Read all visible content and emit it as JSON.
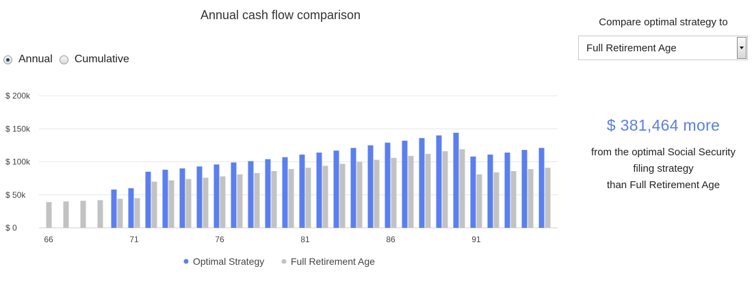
{
  "title": "Annual cash flow comparison",
  "view_mode": {
    "options": [
      "Annual",
      "Cumulative"
    ],
    "selected": "Annual"
  },
  "compare": {
    "label": "Compare optimal strategy to",
    "selected_value": "Full Retirement Age"
  },
  "result": {
    "amount": "$ 381,464 more",
    "line1": "from the optimal Social Security",
    "line2": "filing strategy",
    "line3": "than Full Retirement Age"
  },
  "colors": {
    "optimal": "#5b7ff0",
    "fra": "#c2c2c2",
    "accent": "#5a7ee6"
  },
  "chart_data": {
    "type": "bar",
    "title": "Annual cash flow comparison",
    "x": [
      66,
      67,
      68,
      69,
      70,
      71,
      72,
      73,
      74,
      75,
      76,
      77,
      78,
      79,
      80,
      81,
      82,
      83,
      84,
      85,
      86,
      87,
      88,
      89,
      90,
      91,
      92,
      93,
      94,
      95
    ],
    "x_tick_labels": [
      "66",
      "71",
      "76",
      "81",
      "86",
      "91"
    ],
    "x_tick_values": [
      66,
      71,
      76,
      81,
      86,
      91
    ],
    "y_tick_labels": [
      "$ 0",
      "$ 50k",
      "$ 100k",
      "$ 150k",
      "$ 200k"
    ],
    "y_tick_values": [
      0,
      50000,
      100000,
      150000,
      200000
    ],
    "ylim": [
      0,
      200000
    ],
    "grid": true,
    "legend_position": "bottom-center",
    "series": [
      {
        "name": "Optimal Strategy",
        "values": [
          0,
          0,
          0,
          0,
          58000,
          60000,
          85000,
          88000,
          90000,
          93000,
          96000,
          99000,
          101000,
          104000,
          107000,
          111000,
          114000,
          117000,
          121000,
          125000,
          129000,
          132000,
          136000,
          140000,
          144000,
          108000,
          111000,
          114000,
          118000,
          121000
        ]
      },
      {
        "name": "Full Retirement Age",
        "values": [
          39000,
          40000,
          41000,
          42000,
          44000,
          45000,
          70000,
          72000,
          74000,
          76000,
          78000,
          81000,
          83000,
          86000,
          89000,
          91000,
          94000,
          97000,
          100000,
          103000,
          106000,
          109000,
          112000,
          116000,
          119000,
          81000,
          84000,
          86000,
          89000,
          91000
        ]
      }
    ]
  }
}
